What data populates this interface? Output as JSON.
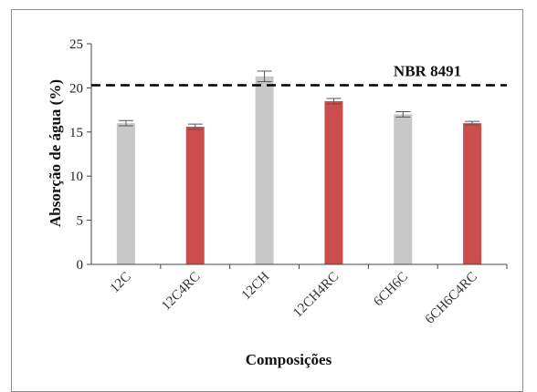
{
  "chart_data": {
    "type": "bar",
    "title": "",
    "xlabel": "Composições",
    "ylabel": "Absorção de água (%)",
    "ylim": [
      0,
      25
    ],
    "yticks": [
      0,
      5,
      10,
      15,
      20,
      25
    ],
    "categories": [
      "12C",
      "12C4RC",
      "12CH",
      "12CH4RC",
      "6CH6C",
      "6CH6C4RC"
    ],
    "values": [
      16.0,
      15.6,
      21.3,
      18.5,
      17.0,
      16.0
    ],
    "errors": [
      0.3,
      0.3,
      0.6,
      0.3,
      0.3,
      0.2
    ],
    "bar_colors": [
      "#c8c8c8",
      "#cc4d4d",
      "#c8c8c8",
      "#cc4d4d",
      "#c8c8c8",
      "#cc4d4d"
    ],
    "reference_line": {
      "label": "NBR 8491",
      "value": 20.3,
      "style": "dashed",
      "color": "#000000"
    },
    "grid": false,
    "legend": "none"
  }
}
